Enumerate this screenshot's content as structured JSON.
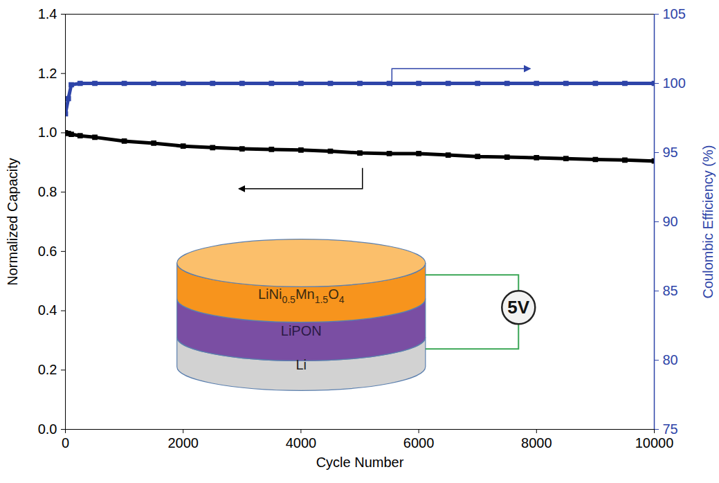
{
  "chart_data": {
    "type": "line",
    "x_label": "Cycle Number",
    "y_label": "Normalized Capacity",
    "y2_label": "Coulombic Efficiency (%)",
    "x": [
      0,
      50,
      100,
      250,
      500,
      1000,
      1500,
      2000,
      2500,
      3000,
      3500,
      4000,
      4500,
      5000,
      5500,
      6000,
      6500,
      7000,
      7500,
      8000,
      8500,
      9000,
      9500,
      10000
    ],
    "series": [
      {
        "color": "#000000",
        "marker": "square",
        "line_style": "solid",
        "values": [
          1.0,
          0.998,
          0.995,
          0.99,
          0.985,
          0.972,
          0.965,
          0.955,
          0.95,
          0.946,
          0.944,
          0.942,
          0.938,
          0.932,
          0.93,
          0.93,
          0.925,
          0.92,
          0.918,
          0.916,
          0.913,
          0.91,
          0.908,
          0.905
        ]
      },
      {
        "color": "#2e44a8",
        "marker": "square",
        "line_style": "solid",
        "axis": "y2",
        "values": [
          97.8,
          98.9,
          99.9,
          100,
          100,
          100,
          100,
          100,
          100,
          100,
          100,
          100,
          100,
          100,
          100,
          100,
          100,
          100,
          100,
          100,
          100,
          100,
          100,
          100
        ]
      }
    ],
    "xlim": [
      0,
      10000
    ],
    "xticks": [
      0,
      2000,
      4000,
      6000,
      8000,
      10000
    ],
    "ylim": [
      0,
      1.4
    ],
    "yticks": [
      {
        "value": 0,
        "label": "0.0"
      },
      0.2,
      0.4,
      0.6,
      0.8,
      {
        "value": 1,
        "label": "1.0"
      },
      1.2,
      1.4
    ],
    "y2lim": [
      75,
      105
    ],
    "y2ticks": [
      75,
      80,
      85,
      90,
      95,
      100,
      105
    ],
    "annotations": {
      "layers": [
        "LiNi0.5Mn1.5O4",
        "LiPON",
        "Li"
      ],
      "voltage": "5V"
    }
  }
}
